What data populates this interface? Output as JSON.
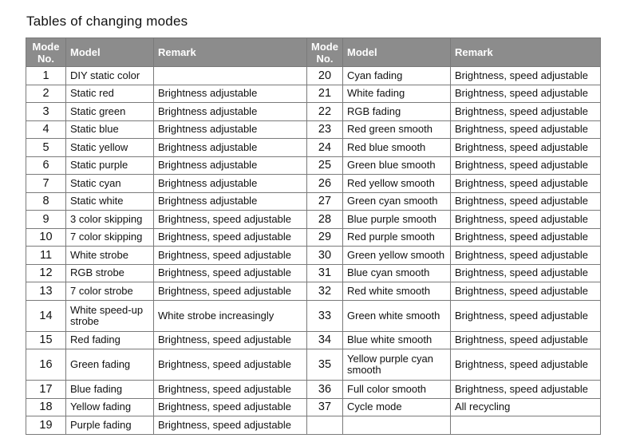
{
  "title": "Tables of changing modes",
  "headers": {
    "mode_no": "Mode No.",
    "model": "Model",
    "remark": "Remark"
  },
  "rows": [
    {
      "l": {
        "no": "1",
        "model": "DIY static color",
        "remark": ""
      },
      "r": {
        "no": "20",
        "model": "Cyan fading",
        "remark": "Brightness, speed adjustable"
      }
    },
    {
      "l": {
        "no": "2",
        "model": "Static red",
        "remark": "Brightness adjustable"
      },
      "r": {
        "no": "21",
        "model": "White fading",
        "remark": "Brightness, speed adjustable"
      }
    },
    {
      "l": {
        "no": "3",
        "model": "Static green",
        "remark": "Brightness adjustable"
      },
      "r": {
        "no": "22",
        "model": "RGB fading",
        "remark": "Brightness, speed adjustable"
      }
    },
    {
      "l": {
        "no": "4",
        "model": "Static blue",
        "remark": "Brightness adjustable"
      },
      "r": {
        "no": "23",
        "model": "Red green smooth",
        "remark": "Brightness, speed adjustable"
      }
    },
    {
      "l": {
        "no": "5",
        "model": "Static yellow",
        "remark": "Brightness adjustable"
      },
      "r": {
        "no": "24",
        "model": "Red blue smooth",
        "remark": "Brightness, speed adjustable"
      }
    },
    {
      "l": {
        "no": "6",
        "model": "Static purple",
        "remark": "Brightness adjustable"
      },
      "r": {
        "no": "25",
        "model": "Green blue smooth",
        "remark": "Brightness, speed adjustable"
      }
    },
    {
      "l": {
        "no": "7",
        "model": "Static cyan",
        "remark": "Brightness adjustable"
      },
      "r": {
        "no": "26",
        "model": "Red yellow smooth",
        "remark": "Brightness, speed adjustable"
      }
    },
    {
      "l": {
        "no": "8",
        "model": "Static white",
        "remark": "Brightness adjustable"
      },
      "r": {
        "no": "27",
        "model": "Green cyan smooth",
        "remark": "Brightness, speed adjustable"
      }
    },
    {
      "l": {
        "no": "9",
        "model": "3 color skipping",
        "remark": "Brightness, speed adjustable"
      },
      "r": {
        "no": "28",
        "model": "Blue purple smooth",
        "remark": "Brightness, speed adjustable"
      }
    },
    {
      "l": {
        "no": "10",
        "model": "7 color skipping",
        "remark": "Brightness, speed adjustable"
      },
      "r": {
        "no": "29",
        "model": "Red purple smooth",
        "remark": "Brightness, speed adjustable"
      }
    },
    {
      "l": {
        "no": "11",
        "model": "White strobe",
        "remark": "Brightness, speed adjustable"
      },
      "r": {
        "no": "30",
        "model": "Green yellow smooth",
        "remark": "Brightness, speed adjustable"
      }
    },
    {
      "l": {
        "no": "12",
        "model": "RGB strobe",
        "remark": "Brightness, speed adjustable"
      },
      "r": {
        "no": "31",
        "model": "Blue cyan smooth",
        "remark": "Brightness, speed adjustable"
      }
    },
    {
      "l": {
        "no": "13",
        "model": "7 color strobe",
        "remark": "Brightness, speed adjustable"
      },
      "r": {
        "no": "32",
        "model": "Red white smooth",
        "remark": "Brightness, speed adjustable"
      }
    },
    {
      "l": {
        "no": "14",
        "model": "White speed-up strobe",
        "remark": "White strobe increasingly"
      },
      "r": {
        "no": "33",
        "model": "Green white smooth",
        "remark": "Brightness, speed adjustable"
      }
    },
    {
      "l": {
        "no": "15",
        "model": "Red fading",
        "remark": "Brightness, speed adjustable"
      },
      "r": {
        "no": "34",
        "model": "Blue white smooth",
        "remark": "Brightness, speed adjustable"
      }
    },
    {
      "l": {
        "no": "16",
        "model": "Green fading",
        "remark": "Brightness, speed adjustable"
      },
      "r": {
        "no": "35",
        "model": "Yellow purple cyan smooth",
        "remark": "Brightness, speed adjustable"
      }
    },
    {
      "l": {
        "no": "17",
        "model": "Blue fading",
        "remark": "Brightness, speed adjustable"
      },
      "r": {
        "no": "36",
        "model": "Full color smooth",
        "remark": "Brightness, speed adjustable"
      }
    },
    {
      "l": {
        "no": "18",
        "model": "Yellow fading",
        "remark": "Brightness, speed adjustable"
      },
      "r": {
        "no": "37",
        "model": "Cycle mode",
        "remark": "All recycling"
      }
    },
    {
      "l": {
        "no": "19",
        "model": "Purple fading",
        "remark": "Brightness, speed adjustable"
      },
      "r": {
        "no": "",
        "model": "",
        "remark": ""
      }
    }
  ]
}
